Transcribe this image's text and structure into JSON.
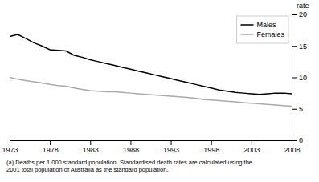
{
  "chart_data": {
    "type": "line",
    "x": [
      1973,
      1974,
      1975,
      1976,
      1977,
      1978,
      1979,
      1980,
      1981,
      1982,
      1983,
      1984,
      1985,
      1986,
      1987,
      1988,
      1989,
      1990,
      1991,
      1992,
      1993,
      1994,
      1995,
      1996,
      1997,
      1998,
      1999,
      2000,
      2001,
      2002,
      2003,
      2004,
      2005,
      2006,
      2007,
      2008
    ],
    "series": [
      {
        "name": "Males",
        "color": "#000000",
        "values": [
          16.5,
          16.8,
          16.2,
          15.5,
          15.0,
          14.4,
          14.3,
          14.2,
          13.5,
          13.2,
          12.8,
          12.5,
          12.2,
          11.9,
          11.6,
          11.3,
          11.0,
          10.7,
          10.4,
          10.1,
          9.8,
          9.5,
          9.2,
          8.9,
          8.6,
          8.3,
          8.0,
          7.8,
          7.6,
          7.5,
          7.4,
          7.3,
          7.4,
          7.5,
          7.5,
          7.4
        ]
      },
      {
        "name": "Females",
        "color": "#aaaaaa",
        "values": [
          10.0,
          9.7,
          9.5,
          9.3,
          9.1,
          8.9,
          8.7,
          8.6,
          8.3,
          8.1,
          7.9,
          7.8,
          7.7,
          7.7,
          7.6,
          7.5,
          7.4,
          7.3,
          7.2,
          7.1,
          7.0,
          6.9,
          6.8,
          6.7,
          6.5,
          6.4,
          6.3,
          6.2,
          6.1,
          6.0,
          5.9,
          5.8,
          5.7,
          5.6,
          5.5,
          5.4
        ]
      }
    ],
    "xlim": [
      1973,
      2008
    ],
    "ylim": [
      0,
      20
    ],
    "xticks": [
      1973,
      1978,
      1983,
      1988,
      1993,
      1998,
      2003,
      2008
    ],
    "yticks": [
      0,
      5,
      10,
      15,
      20
    ],
    "ylabel": "rate",
    "footnote": "(a) Deaths per 1,000 standard population. Standardised death rates are calculated using the\n2001 total population of Australia as the standard population.",
    "legend": "top-right",
    "grid": false
  }
}
